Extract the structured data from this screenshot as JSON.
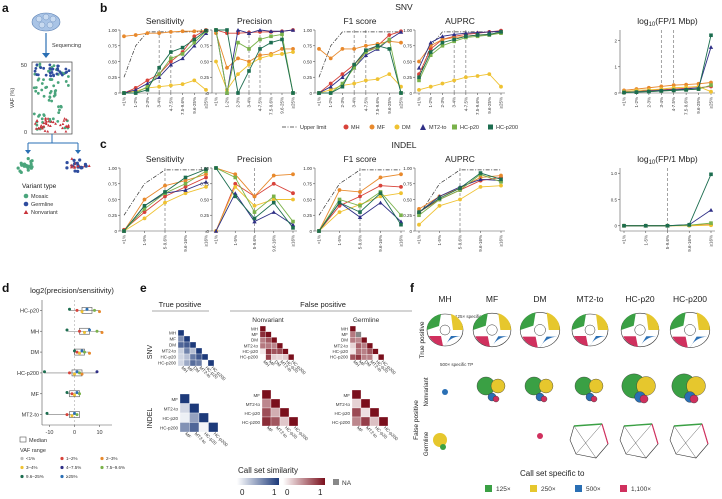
{
  "colors": {
    "MH": "#d8433a",
    "MF": "#e8892c",
    "DM": "#efc232",
    "MT2-to": "#2f2f86",
    "HC-p20": "#7ab24a",
    "HC-p200": "#1c6d4f",
    "mosaic": "#4aa57c",
    "germline": "#2f4d9e",
    "nonvariant": "#c8323a",
    "grey": "#888888",
    "blue": "#2a6fb4",
    "green": "#3aa044",
    "yellow": "#e6c72d",
    "pink": "#d0305e"
  },
  "panel_labels": {
    "a": "a",
    "b": "b",
    "c": "c",
    "d": "d",
    "e": "e",
    "f": "f"
  },
  "panel_a": {
    "sequencing": "Sequencing",
    "ylabel": "VAF (%)",
    "y_top": "50",
    "y_bottom": "0",
    "legend_title": "Variant type",
    "legend": [
      "Mosaic",
      "Germline",
      "Nonvariant"
    ]
  },
  "chart_data": [
    {
      "id": "b_sens",
      "type": "line",
      "section": "SNV",
      "title": "Sensitivity",
      "ylim": [
        0,
        1
      ],
      "yticks": [
        "0",
        "0.25",
        "0.50",
        "0.75",
        "1.00"
      ],
      "x": [
        "<1%",
        "1-2%",
        "2-3%",
        "3-4%",
        "4-7.5%",
        "7.5-9.6%",
        "9.6-25%",
        "≥25%"
      ],
      "series": [
        {
          "name": "MH",
          "values": [
            0.0,
            0.08,
            0.2,
            0.3,
            0.5,
            0.65,
            0.9,
            1.0
          ]
        },
        {
          "name": "MF",
          "values": [
            0.9,
            0.92,
            0.95,
            0.95,
            0.97,
            0.98,
            0.98,
            0.99
          ]
        },
        {
          "name": "DM",
          "values": [
            0.0,
            0.03,
            0.08,
            0.1,
            0.12,
            0.14,
            0.2,
            0.05
          ]
        },
        {
          "name": "MT2-to",
          "values": [
            0.0,
            0.05,
            0.15,
            0.25,
            0.45,
            0.55,
            0.75,
            0.95
          ]
        },
        {
          "name": "HC-p20",
          "values": [
            0.0,
            0.0,
            0.1,
            0.3,
            0.55,
            0.62,
            0.8,
            0.98
          ]
        },
        {
          "name": "HC-p200",
          "values": [
            0.0,
            0.0,
            0.05,
            0.4,
            0.65,
            0.72,
            0.85,
            0.99
          ]
        }
      ]
    },
    {
      "id": "b_prec",
      "type": "line",
      "section": "SNV",
      "title": "Precision",
      "ylim": [
        0,
        1
      ],
      "yticks": [
        "0",
        "0.25",
        "0.50",
        "0.75",
        "1.00"
      ],
      "x": [
        "<1%",
        "1-2%",
        "2-3%",
        "3-4%",
        "4-7.5%",
        "7.5-9.6%",
        "9.6-25%",
        "≥25%"
      ],
      "series": [
        {
          "name": "MH",
          "values": [
            1.0,
            0.95,
            0.95,
            0.96,
            0.97,
            0.97,
            0.98,
            1.0
          ]
        },
        {
          "name": "MF",
          "values": [
            0.95,
            0.4,
            0.55,
            0.5,
            0.6,
            0.62,
            0.7,
            0.7
          ]
        },
        {
          "name": "DM",
          "values": [
            0.5,
            0.05,
            0.3,
            0.45,
            0.55,
            0.6,
            0.62,
            0.65
          ]
        },
        {
          "name": "MT2-to",
          "values": [
            1.0,
            0.0,
            1.0,
            0.95,
            1.0,
            0.98,
            0.98,
            1.0
          ]
        },
        {
          "name": "HC-p20",
          "values": [
            1.0,
            0.0,
            0.8,
            0.7,
            0.85,
            0.9,
            0.93,
            0.0
          ]
        },
        {
          "name": "HC-p200",
          "values": [
            1.0,
            1.0,
            0.0,
            0.35,
            0.7,
            0.8,
            0.85,
            0.0
          ]
        }
      ]
    },
    {
      "id": "b_f1",
      "type": "line",
      "section": "SNV",
      "title": "F1 score",
      "ylim": [
        0,
        1
      ],
      "yticks": [
        "0",
        "0.25",
        "0.50",
        "0.75",
        "1.00"
      ],
      "x": [
        "<1%",
        "1-2%",
        "2-3%",
        "3-4%",
        "4-7.5%",
        "7.5-9.6%",
        "9.6-25%",
        "≥25%"
      ],
      "series": [
        {
          "name": "MH",
          "values": [
            0.0,
            0.15,
            0.3,
            0.45,
            0.65,
            0.75,
            0.92,
            0.98
          ]
        },
        {
          "name": "MF",
          "values": [
            0.7,
            0.55,
            0.7,
            0.7,
            0.75,
            0.78,
            0.82,
            0.8
          ]
        },
        {
          "name": "DM",
          "values": [
            0.0,
            0.05,
            0.12,
            0.15,
            0.2,
            0.22,
            0.3,
            0.1
          ]
        },
        {
          "name": "MT2-to",
          "values": [
            0.0,
            0.1,
            0.25,
            0.4,
            0.6,
            0.7,
            0.85,
            0.97
          ]
        },
        {
          "name": "HC-p20",
          "values": [
            0.0,
            0.0,
            0.15,
            0.4,
            0.65,
            0.72,
            0.85,
            0.0
          ]
        },
        {
          "name": "HC-p200",
          "values": [
            0.0,
            0.0,
            0.1,
            0.45,
            0.68,
            0.75,
            0.7,
            0.0
          ]
        }
      ]
    },
    {
      "id": "b_auprc",
      "type": "line",
      "section": "SNV",
      "title": "AUPRC",
      "ylim": [
        0,
        1
      ],
      "yticks": [
        "0",
        "0.25",
        "0.50",
        "0.75",
        "1.00"
      ],
      "x": [
        "<1%",
        "1-2%",
        "2-3%",
        "3-4%",
        "4-7.5%",
        "7.5-9.6%",
        "9.6-25%",
        "≥25%"
      ],
      "series": [
        {
          "name": "MH",
          "values": [
            0.3,
            0.7,
            0.85,
            0.9,
            0.93,
            0.95,
            0.97,
            0.99
          ]
        },
        {
          "name": "MF",
          "values": [
            0.5,
            0.75,
            0.85,
            0.88,
            0.9,
            0.92,
            0.93,
            0.95
          ]
        },
        {
          "name": "DM",
          "values": [
            0.05,
            0.1,
            0.15,
            0.2,
            0.25,
            0.27,
            0.3,
            0.1
          ]
        },
        {
          "name": "MT2-to",
          "values": [
            0.4,
            0.8,
            0.9,
            0.93,
            0.95,
            0.96,
            0.97,
            0.98
          ]
        },
        {
          "name": "HC-p20",
          "values": [
            0.2,
            0.6,
            0.75,
            0.82,
            0.88,
            0.9,
            0.92,
            0.95
          ]
        },
        {
          "name": "HC-p200",
          "values": [
            0.25,
            0.65,
            0.8,
            0.85,
            0.9,
            0.92,
            0.93,
            0.97
          ]
        }
      ]
    },
    {
      "id": "b_fp",
      "type": "line",
      "section": "SNV",
      "title": "log10(FP/1 Mbp)",
      "ylim": [
        0,
        2.4
      ],
      "yticks": [
        "0",
        "1",
        "2"
      ],
      "x": [
        "<1%",
        "1-2%",
        "2-3%",
        "3-4%",
        "4-7.5%",
        "7.5-9.6%",
        "9.6-25%",
        "≥25%"
      ],
      "series": [
        {
          "name": "MH",
          "values": [
            0.02,
            0.05,
            0.1,
            0.12,
            0.15,
            0.18,
            0.2,
            0.25
          ]
        },
        {
          "name": "MF",
          "values": [
            0.1,
            0.15,
            0.2,
            0.25,
            0.3,
            0.32,
            0.35,
            0.4
          ]
        },
        {
          "name": "DM",
          "values": [
            0.05,
            0.1,
            0.12,
            0.15,
            0.2,
            0.22,
            0.25,
            0.05
          ]
        },
        {
          "name": "MT2-to",
          "values": [
            0.03,
            0.05,
            0.08,
            0.1,
            0.12,
            0.15,
            0.2,
            1.75
          ]
        },
        {
          "name": "HC-p20",
          "values": [
            0.02,
            0.04,
            0.06,
            0.08,
            0.1,
            0.12,
            0.15,
            0.3
          ]
        },
        {
          "name": "HC-p200",
          "values": [
            0.02,
            0.03,
            0.05,
            0.08,
            0.1,
            0.12,
            0.15,
            2.2
          ]
        }
      ]
    },
    {
      "id": "c_sens",
      "type": "line",
      "section": "INDEL",
      "title": "Sensitivity",
      "ylim": [
        0,
        1
      ],
      "yticks": [
        "0",
        "0.25",
        "0.50",
        "0.75",
        "1.00"
      ],
      "x": [
        "<1%",
        "1-5%",
        "5-9.6%",
        "9.6-16%",
        "≥16%"
      ],
      "series": [
        {
          "name": "MH",
          "values": [
            0.02,
            0.3,
            0.55,
            0.7,
            0.85
          ]
        },
        {
          "name": "MF",
          "values": [
            0.0,
            0.5,
            0.72,
            0.8,
            0.9
          ]
        },
        {
          "name": "DM",
          "values": [
            0.0,
            0.2,
            0.45,
            0.6,
            0.7
          ]
        },
        {
          "name": "MT2-to",
          "values": [
            0.0,
            0.4,
            0.6,
            0.65,
            0.78
          ]
        },
        {
          "name": "HC-p20",
          "values": [
            0.0,
            0.35,
            0.6,
            0.75,
            0.95
          ]
        },
        {
          "name": "HC-p200",
          "values": [
            0.0,
            0.4,
            0.62,
            0.85,
            0.98
          ]
        }
      ]
    },
    {
      "id": "c_prec",
      "type": "line",
      "section": "INDEL",
      "title": "Precision",
      "ylim": [
        0,
        1
      ],
      "yticks": [
        "0",
        "0.25",
        "0.50",
        "0.75",
        "1.00"
      ],
      "x": [
        "<1%",
        "1-5%",
        "5-9.6%",
        "9.6-16%",
        "≥16%"
      ],
      "series": [
        {
          "name": "MH",
          "values": [
            0.0,
            0.75,
            0.55,
            0.75,
            0.6
          ]
        },
        {
          "name": "MF",
          "values": [
            1.0,
            0.9,
            0.55,
            0.88,
            0.9
          ]
        },
        {
          "name": "DM",
          "values": [
            0.0,
            0.7,
            0.4,
            0.5,
            0.5
          ]
        },
        {
          "name": "MT2-to",
          "values": [
            0.0,
            0.6,
            0.15,
            0.3,
            0.1
          ]
        },
        {
          "name": "HC-p20",
          "values": [
            1.0,
            0.85,
            0.3,
            0.55,
            0.15
          ]
        },
        {
          "name": "HC-p200",
          "values": [
            1.0,
            0.55,
            0.2,
            0.45,
            0.05
          ]
        }
      ]
    },
    {
      "id": "c_f1",
      "type": "line",
      "section": "INDEL",
      "title": "F1 score",
      "ylim": [
        0,
        1
      ],
      "yticks": [
        "0",
        "0.25",
        "0.50",
        "0.75",
        "1.00"
      ],
      "x": [
        "<1%",
        "1-5%",
        "5-9.6%",
        "9.6-16%",
        "≥16%"
      ],
      "series": [
        {
          "name": "MH",
          "values": [
            0.0,
            0.4,
            0.55,
            0.72,
            0.7
          ]
        },
        {
          "name": "MF",
          "values": [
            0.0,
            0.65,
            0.62,
            0.85,
            0.9
          ]
        },
        {
          "name": "DM",
          "values": [
            0.0,
            0.3,
            0.42,
            0.55,
            0.6
          ]
        },
        {
          "name": "MT2-to",
          "values": [
            0.0,
            0.45,
            0.22,
            0.45,
            0.15
          ]
        },
        {
          "name": "HC-p20",
          "values": [
            0.0,
            0.5,
            0.4,
            0.62,
            0.25
          ]
        },
        {
          "name": "HC-p200",
          "values": [
            0.0,
            0.45,
            0.3,
            0.6,
            0.1
          ]
        }
      ]
    },
    {
      "id": "c_auprc",
      "type": "line",
      "section": "INDEL",
      "title": "AUPRC",
      "ylim": [
        0,
        1
      ],
      "yticks": [
        "0",
        "0.25",
        "0.50",
        "0.75",
        "1.00"
      ],
      "x": [
        "<1%",
        "1-5%",
        "5-9.6%",
        "9.6-16%",
        "≥16%"
      ],
      "series": [
        {
          "name": "MH",
          "values": [
            0.3,
            0.5,
            0.65,
            0.8,
            0.85
          ]
        },
        {
          "name": "MF",
          "values": [
            0.35,
            0.55,
            0.68,
            0.85,
            0.88
          ]
        },
        {
          "name": "DM",
          "values": [
            0.1,
            0.4,
            0.5,
            0.7,
            0.72
          ]
        },
        {
          "name": "MT2-to",
          "values": [
            0.3,
            0.55,
            0.7,
            0.82,
            0.8
          ]
        },
        {
          "name": "HC-p20",
          "values": [
            0.25,
            0.5,
            0.65,
            0.9,
            0.78
          ]
        },
        {
          "name": "HC-p200",
          "values": [
            0.3,
            0.52,
            0.68,
            0.92,
            0.82
          ]
        }
      ]
    },
    {
      "id": "c_fp",
      "type": "line",
      "section": "INDEL",
      "title": "log10(FP/1 Mbp)",
      "ylim": [
        -0.1,
        1.1
      ],
      "yticks": [
        "0",
        "0.5",
        "1.0"
      ],
      "x": [
        "<1%",
        "1-5%",
        "5-9.6%",
        "9.6-16%",
        "≥16%"
      ],
      "series": [
        {
          "name": "MH",
          "values": [
            0.0,
            0.0,
            0.0,
            0.01,
            0.02
          ]
        },
        {
          "name": "MF",
          "values": [
            0.0,
            0.0,
            0.0,
            0.01,
            0.02
          ]
        },
        {
          "name": "DM",
          "values": [
            0.0,
            0.0,
            0.0,
            0.0,
            0.01
          ]
        },
        {
          "name": "MT2-to",
          "values": [
            0.0,
            0.0,
            0.0,
            0.02,
            0.3
          ]
        },
        {
          "name": "HC-p20",
          "values": [
            0.0,
            0.0,
            0.0,
            0.01,
            0.05
          ]
        },
        {
          "name": "HC-p200",
          "values": [
            0.0,
            0.0,
            0.0,
            0.02,
            0.98
          ]
        }
      ]
    },
    {
      "id": "d_box",
      "type": "scatter",
      "title": "log2(precision/sensitivity)",
      "categories": [
        "HC-p20",
        "MH",
        "DM",
        "HC-p200",
        "MF",
        "MT2-to"
      ],
      "medians": [
        5,
        4,
        2,
        1,
        0,
        0
      ],
      "xlim": [
        -13,
        15
      ],
      "xticks": [
        "-10",
        "0",
        "10"
      ],
      "points": [
        [
          -2,
          1,
          3,
          5,
          8,
          10
        ],
        [
          -3,
          2,
          4,
          6,
          9,
          11
        ],
        [
          0,
          1,
          2,
          3,
          4,
          6
        ],
        [
          -12,
          -2,
          0,
          1,
          2,
          3,
          9
        ],
        [
          -3,
          -1,
          0,
          1,
          2
        ],
        [
          -11,
          -3,
          -1,
          0,
          1
        ]
      ]
    }
  ],
  "panel_b": {
    "section": "SNV",
    "legend_items": [
      "Upper limit",
      "MH",
      "MF",
      "DM",
      "MT2-to",
      "HC-p20",
      "HC-p200"
    ]
  },
  "panel_c": {
    "section": "INDEL"
  },
  "panel_d": {
    "title": "log2(precision/sensitivity)",
    "median_label": "Median",
    "vaf_title": "VAF range",
    "vaf_items": [
      "<1%",
      "1–2%",
      "2–3%",
      "3–4%",
      "4–7.5%",
      "7.5–9.6%",
      "9.6–25%",
      "≥25%"
    ]
  },
  "panel_e": {
    "tp": "True positive",
    "fp": "False positive",
    "nonvariant": "Nonvariant",
    "germline": "Germline",
    "snv": "SNV",
    "indel": "INDEL",
    "snv_callers": [
      "MH",
      "MF",
      "DM",
      "MT2-to",
      "HC-p20",
      "HC-p200"
    ],
    "indel_callers": [
      "MF",
      "MT2-to",
      "HC-p20",
      "HC-p200"
    ],
    "legend_title": "Call set similarity",
    "scale": [
      "0",
      "1",
      "0",
      "1"
    ],
    "na": "NA"
  },
  "panel_f": {
    "callers": [
      "MH",
      "MF",
      "DM",
      "MT2-to",
      "HC-p20",
      "HC-p200"
    ],
    "tp": "True positive",
    "fp": "False positive",
    "nonvariant": "Nonvariant",
    "germline": "Germline",
    "note1": "125× specific TP",
    "note2": "500× specific TP",
    "legend_title": "Call set specific to",
    "legend": [
      "125×",
      "250×",
      "500×",
      "1,100×"
    ]
  }
}
